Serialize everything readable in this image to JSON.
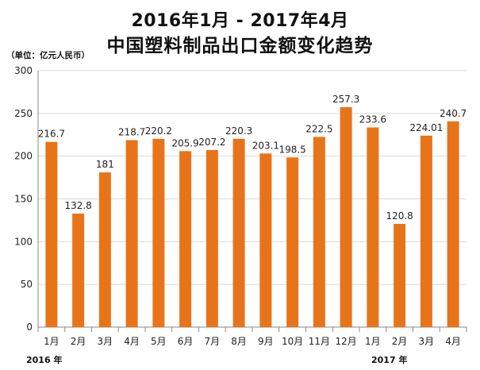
{
  "title_line1": "2016年1月 - 2017年4月",
  "title_line2": "中国塑料制品出口金额变化趋势",
  "unit_label": "（单位：亿元人民币）",
  "year_labels": [
    "2016 年",
    "2017 年"
  ],
  "bar_color": "#E8741A",
  "chart_data": {
    "type": "bar",
    "title": "中国塑料制品出口金额变化趋势",
    "ylabel": "单位：亿元人民币",
    "ylim": [
      0,
      300
    ],
    "yticks": [
      0,
      50,
      100,
      150,
      200,
      250,
      300
    ],
    "grid": true,
    "categories": [
      "1月",
      "2月",
      "3月",
      "4月",
      "5月",
      "6月",
      "7月",
      "8月",
      "9月",
      "10月",
      "11月",
      "12月",
      "1月",
      "2月",
      "3月",
      "4月"
    ],
    "values": [
      216.7,
      132.8,
      181,
      218.7,
      220.2,
      205.9,
      207.2,
      220.3,
      203.1,
      198.5,
      222.5,
      257.3,
      233.6,
      120.8,
      224.01,
      240.7
    ],
    "value_labels": [
      "216.7",
      "132.8",
      "181",
      "218.7",
      "220.2",
      "205.9",
      "207.2",
      "220.3",
      "203.1",
      "198.5",
      "222.5",
      "257.3",
      "233.6",
      "120.8",
      "224.01",
      "240.7"
    ]
  }
}
